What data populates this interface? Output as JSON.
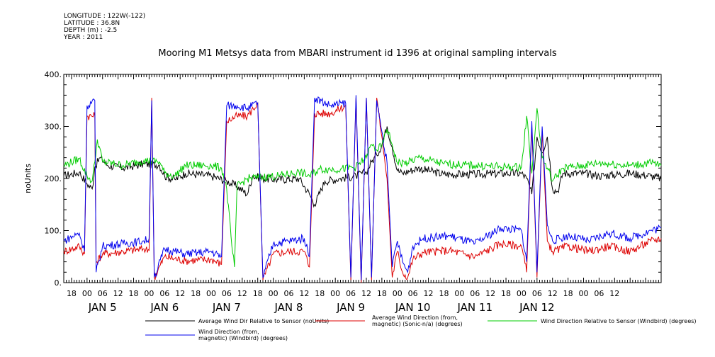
{
  "meta": {
    "longitude": "LONGITUDE : 122W(-122)",
    "latitude": "LATITUDE : 36.8N",
    "depth": "DEPTH (m) : -2.5",
    "year": "YEAR : 2011"
  },
  "chart_data": {
    "type": "line",
    "title": "Mooring M1 Metsys data from MBARI instrument id 1396 at original sampling intervals",
    "ylabel": "noUnits",
    "ylim": [
      0,
      400
    ],
    "yticks": [
      "0.",
      "100.",
      "200.",
      "300.",
      "400."
    ],
    "xlim_hours": [
      -9,
      222
    ],
    "hour_ticks": [
      "18",
      "00",
      "06",
      "12",
      "18",
      "00",
      "06",
      "12",
      "18",
      "00",
      "06",
      "12",
      "18",
      "00",
      "06",
      "12",
      "18",
      "00",
      "06",
      "12",
      "18",
      "00",
      "06",
      "12",
      "18",
      "00",
      "06",
      "12",
      "18",
      "00",
      "06",
      "12",
      "18",
      "00",
      "06",
      "12"
    ],
    "day_labels": [
      "JAN  5",
      "JAN  6",
      "JAN  7",
      "JAN  8",
      "JAN  9",
      "JAN 10",
      "JAN 11",
      "JAN 12"
    ],
    "series": [
      {
        "name": "Average Wind Dir Relative to Sensor (noUnits)",
        "color": "#000000",
        "points": [
          [
            -9,
            205
          ],
          [
            -3,
            212
          ],
          [
            0,
            190
          ],
          [
            2,
            180
          ],
          [
            3,
            222
          ],
          [
            5,
            240
          ],
          [
            8,
            225
          ],
          [
            14,
            220
          ],
          [
            22,
            228
          ],
          [
            28,
            226
          ],
          [
            30,
            205
          ],
          [
            34,
            198
          ],
          [
            38,
            210
          ],
          [
            48,
            205
          ],
          [
            54,
            195
          ],
          [
            58,
            185
          ],
          [
            62,
            170
          ],
          [
            64,
            205
          ],
          [
            68,
            200
          ],
          [
            74,
            198
          ],
          [
            82,
            200
          ],
          [
            86,
            170
          ],
          [
            88,
            150
          ],
          [
            92,
            195
          ],
          [
            98,
            200
          ],
          [
            104,
            205
          ],
          [
            108,
            212
          ],
          [
            110,
            232
          ],
          [
            112,
            245
          ],
          [
            114,
            265
          ],
          [
            116,
            300
          ],
          [
            118,
            260
          ],
          [
            120,
            215
          ],
          [
            122,
            210
          ],
          [
            128,
            220
          ],
          [
            138,
            208
          ],
          [
            150,
            208
          ],
          [
            162,
            210
          ],
          [
            168,
            210
          ],
          [
            170,
            200
          ],
          [
            172,
            170
          ],
          [
            174,
            280
          ],
          [
            176,
            250
          ],
          [
            178,
            280
          ],
          [
            180,
            180
          ],
          [
            182,
            175
          ],
          [
            184,
            210
          ],
          [
            192,
            210
          ],
          [
            198,
            205
          ],
          [
            210,
            210
          ],
          [
            218,
            205
          ],
          [
            222,
            200
          ]
        ]
      },
      {
        "name": "Average Wind Direction (from, magnetic) (Sonic-n/a) (degrees)",
        "color": "#dd0000",
        "points": [
          [
            -9,
            60
          ],
          [
            -3,
            70
          ],
          [
            -1,
            55
          ],
          [
            0,
            320
          ],
          [
            3,
            320
          ],
          [
            3.5,
            40
          ],
          [
            6,
            55
          ],
          [
            14,
            60
          ],
          [
            22,
            65
          ],
          [
            24,
            62
          ],
          [
            25,
            355
          ],
          [
            26,
            10
          ],
          [
            30,
            50
          ],
          [
            38,
            42
          ],
          [
            48,
            45
          ],
          [
            52,
            35
          ],
          [
            54,
            310
          ],
          [
            58,
            320
          ],
          [
            62,
            320
          ],
          [
            66,
            345
          ],
          [
            68,
            5
          ],
          [
            72,
            55
          ],
          [
            78,
            60
          ],
          [
            84,
            60
          ],
          [
            86,
            30
          ],
          [
            88,
            325
          ],
          [
            94,
            325
          ],
          [
            100,
            340
          ],
          [
            102,
            5
          ],
          [
            104,
            355
          ],
          [
            106,
            0
          ],
          [
            108,
            355
          ],
          [
            110,
            5
          ],
          [
            112,
            355
          ],
          [
            114,
            280
          ],
          [
            116,
            200
          ],
          [
            118,
            10
          ],
          [
            120,
            60
          ],
          [
            122,
            20
          ],
          [
            124,
            10
          ],
          [
            126,
            45
          ],
          [
            130,
            58
          ],
          [
            140,
            62
          ],
          [
            150,
            50
          ],
          [
            160,
            75
          ],
          [
            168,
            70
          ],
          [
            170,
            20
          ],
          [
            172,
            300
          ],
          [
            174,
            10
          ],
          [
            176,
            290
          ],
          [
            178,
            80
          ],
          [
            180,
            60
          ],
          [
            186,
            70
          ],
          [
            194,
            60
          ],
          [
            202,
            70
          ],
          [
            210,
            60
          ],
          [
            218,
            80
          ],
          [
            222,
            85
          ]
        ]
      },
      {
        "name": "Wind Direction Relative to Sensor (Windbird) (degrees)",
        "color": "#00cc00",
        "points": [
          [
            -9,
            225
          ],
          [
            -3,
            238
          ],
          [
            0,
            205
          ],
          [
            2,
            195
          ],
          [
            3,
            232
          ],
          [
            4,
            275
          ],
          [
            6,
            232
          ],
          [
            14,
            225
          ],
          [
            22,
            235
          ],
          [
            28,
            232
          ],
          [
            30,
            210
          ],
          [
            34,
            205
          ],
          [
            38,
            225
          ],
          [
            48,
            225
          ],
          [
            52,
            220
          ],
          [
            54,
            180
          ],
          [
            56,
            70
          ],
          [
            57,
            30
          ],
          [
            58,
            185
          ],
          [
            62,
            200
          ],
          [
            66,
            202
          ],
          [
            74,
            205
          ],
          [
            82,
            212
          ],
          [
            86,
            205
          ],
          [
            90,
            218
          ],
          [
            98,
            218
          ],
          [
            104,
            222
          ],
          [
            108,
            240
          ],
          [
            110,
            265
          ],
          [
            112,
            255
          ],
          [
            114,
            262
          ],
          [
            116,
            295
          ],
          [
            118,
            265
          ],
          [
            120,
            230
          ],
          [
            124,
            230
          ],
          [
            128,
            240
          ],
          [
            138,
            228
          ],
          [
            150,
            225
          ],
          [
            162,
            222
          ],
          [
            168,
            222
          ],
          [
            170,
            320
          ],
          [
            172,
            210
          ],
          [
            174,
            335
          ],
          [
            176,
            240
          ],
          [
            178,
            220
          ],
          [
            180,
            195
          ],
          [
            184,
            220
          ],
          [
            192,
            225
          ],
          [
            198,
            230
          ],
          [
            210,
            225
          ],
          [
            218,
            230
          ],
          [
            222,
            225
          ]
        ]
      },
      {
        "name": "Wind Direction (from, magnetic) (Windbird) (degrees)",
        "color": "#0000ee",
        "points": [
          [
            -9,
            80
          ],
          [
            -3,
            95
          ],
          [
            -1,
            60
          ],
          [
            0,
            340
          ],
          [
            3,
            350
          ],
          [
            3.5,
            20
          ],
          [
            6,
            70
          ],
          [
            14,
            75
          ],
          [
            22,
            80
          ],
          [
            24,
            85
          ],
          [
            25,
            350
          ],
          [
            26,
            10
          ],
          [
            30,
            65
          ],
          [
            38,
            55
          ],
          [
            48,
            60
          ],
          [
            52,
            50
          ],
          [
            54,
            340
          ],
          [
            58,
            340
          ],
          [
            62,
            335
          ],
          [
            66,
            345
          ],
          [
            68,
            10
          ],
          [
            72,
            75
          ],
          [
            78,
            80
          ],
          [
            84,
            85
          ],
          [
            86,
            50
          ],
          [
            88,
            355
          ],
          [
            94,
            340
          ],
          [
            100,
            345
          ],
          [
            102,
            10
          ],
          [
            104,
            360
          ],
          [
            106,
            5
          ],
          [
            108,
            355
          ],
          [
            110,
            10
          ],
          [
            112,
            350
          ],
          [
            114,
            290
          ],
          [
            116,
            230
          ],
          [
            118,
            30
          ],
          [
            120,
            80
          ],
          [
            122,
            40
          ],
          [
            124,
            20
          ],
          [
            126,
            70
          ],
          [
            130,
            85
          ],
          [
            140,
            90
          ],
          [
            150,
            75
          ],
          [
            160,
            105
          ],
          [
            168,
            100
          ],
          [
            170,
            40
          ],
          [
            172,
            310
          ],
          [
            174,
            20
          ],
          [
            176,
            300
          ],
          [
            178,
            110
          ],
          [
            180,
            80
          ],
          [
            186,
            90
          ],
          [
            194,
            80
          ],
          [
            202,
            95
          ],
          [
            210,
            85
          ],
          [
            218,
            100
          ],
          [
            222,
            105
          ]
        ]
      }
    ],
    "legend": {
      "black": "Average Wind Dir Relative to Sensor (noUnits)",
      "red_line1": "Average Wind Direction (from,",
      "red_line2": "magnetic) (Sonic-n/a) (degrees)",
      "green": "Wind Direction Relative to Sensor (Windbird) (degrees)",
      "blue_line1": "Wind Direction (from,",
      "blue_line2": "magnetic) (Windbird) (degrees)"
    }
  }
}
